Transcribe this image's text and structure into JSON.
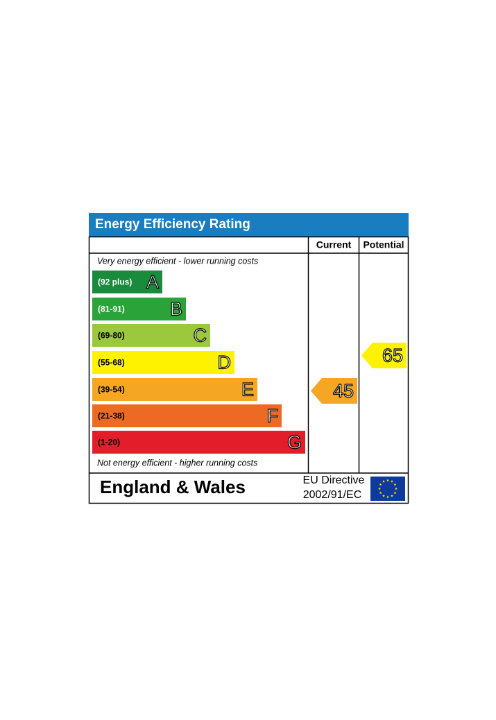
{
  "header": {
    "title": "Energy Efficiency Rating"
  },
  "columns": [
    "Current",
    "Potential"
  ],
  "top_note": "Very energy efficient - lower running costs",
  "bands": [
    {
      "range": "(92 plus)",
      "letter": "A",
      "color": "#1a8a3c",
      "text_color": "#ffffff"
    },
    {
      "range": "(81-91)",
      "letter": "B",
      "color": "#2aa339",
      "text_color": "#ffffff"
    },
    {
      "range": "(69-80)",
      "letter": "C",
      "color": "#9bc83c",
      "text_color": "#000000"
    },
    {
      "range": "(55-68)",
      "letter": "D",
      "color": "#fff200",
      "text_color": "#000000"
    },
    {
      "range": "(39-54)",
      "letter": "E",
      "color": "#f5a623",
      "text_color": "#000000"
    },
    {
      "range": "(21-38)",
      "letter": "F",
      "color": "#ec6a23",
      "text_color": "#000000"
    },
    {
      "range": "(1-20)",
      "letter": "G",
      "color": "#e31d2a",
      "text_color": "#000000"
    }
  ],
  "bottom_note": "Not energy efficient - higher running costs",
  "ratings": {
    "current": 45,
    "potential": 65
  },
  "footer": {
    "region": "England & Wales",
    "directive_line1": "EU Directive",
    "directive_line2": "2002/91/EC"
  }
}
